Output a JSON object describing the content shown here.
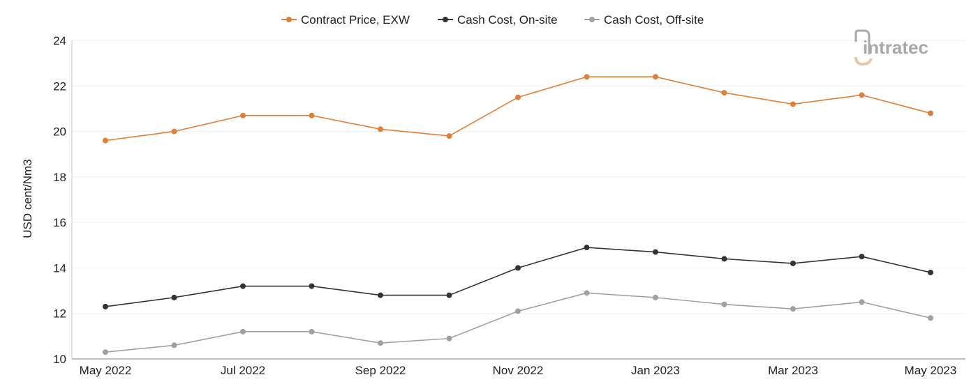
{
  "chart_data": {
    "type": "line",
    "title": "",
    "xlabel": "",
    "ylabel": "USD cent/Nm3",
    "ylim": [
      10,
      24
    ],
    "yticks": [
      10,
      12,
      14,
      16,
      18,
      20,
      22,
      24
    ],
    "categories": [
      "May 2022",
      "Jun 2022",
      "Jul 2022",
      "Aug 2022",
      "Sep 2022",
      "Oct 2022",
      "Nov 2022",
      "Dec 2022",
      "Jan 2023",
      "Feb 2023",
      "Mar 2023",
      "Apr 2023",
      "May 2023"
    ],
    "xtick_labels": [
      "May 2022",
      "",
      "Jul 2022",
      "",
      "Sep 2022",
      "",
      "Nov 2022",
      "",
      "Jan 2023",
      "",
      "Mar 2023",
      "",
      "May 2023"
    ],
    "grid": true,
    "legend_position": "top-center",
    "series": [
      {
        "name": "Contract Price, EXW",
        "color": "#e07f35",
        "values": [
          19.6,
          20.0,
          20.7,
          20.7,
          20.1,
          19.8,
          21.5,
          22.4,
          22.4,
          21.7,
          21.2,
          21.6,
          20.8
        ]
      },
      {
        "name": "Cash Cost, On-site",
        "color": "#333333",
        "values": [
          12.3,
          12.7,
          13.2,
          13.2,
          12.8,
          12.8,
          14.0,
          14.9,
          14.7,
          14.4,
          14.2,
          14.5,
          13.8
        ]
      },
      {
        "name": "Cash Cost, Off-site",
        "color": "#a0a0a0",
        "values": [
          10.3,
          10.6,
          11.2,
          11.2,
          10.7,
          10.9,
          12.1,
          12.9,
          12.7,
          12.4,
          12.2,
          12.5,
          11.8
        ]
      }
    ]
  },
  "logo": {
    "text": "intratec",
    "primary_color": "#a9a9a9",
    "accent_color": "#e8c7a6"
  }
}
